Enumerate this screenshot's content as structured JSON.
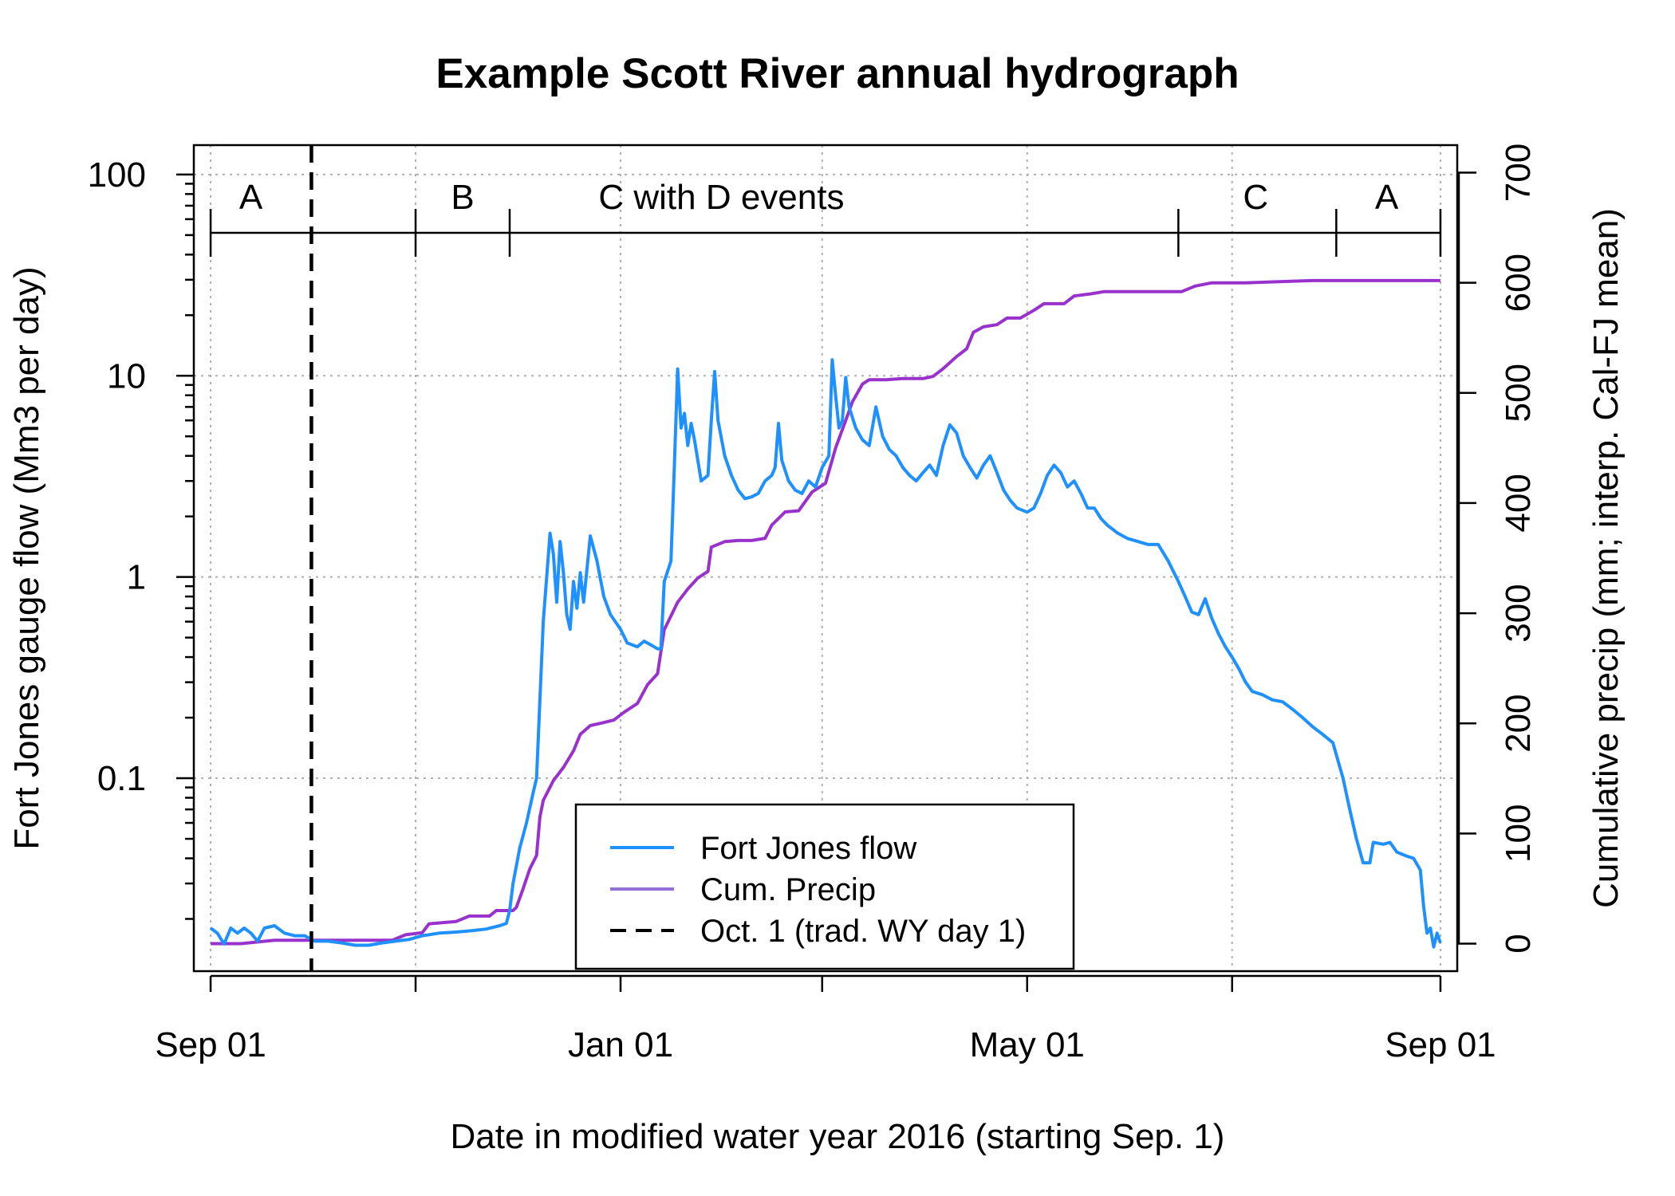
{
  "chart_data": {
    "type": "line",
    "title": "Example Scott River annual hydrograph",
    "xlabel": "Date in modified water year 2016 (starting Sep. 1)",
    "ylabel": "Fort Jones gauge flow (Mm3 per day)",
    "y2label": "Cumulative precip (mm; interp. Cal-FJ mean)",
    "x_ticks": [
      {
        "date": "2015-09-01",
        "label": "Sep 01"
      },
      {
        "date": "2016-01-01",
        "label": "Jan 01"
      },
      {
        "date": "2016-05-01",
        "label": "May 01"
      },
      {
        "date": "2016-09-01",
        "label": "Sep 01"
      }
    ],
    "x_minor_ticks": [
      "2015-11-01",
      "2016-03-01",
      "2016-07-01"
    ],
    "xlim": [
      "2015-08-27",
      "2016-09-06"
    ],
    "y_scale": "log",
    "ylim": [
      0.011,
      140
    ],
    "y_ticks": [
      {
        "value": 0.1,
        "label": "0.1"
      },
      {
        "value": 1,
        "label": "1"
      },
      {
        "value": 10,
        "label": "10"
      },
      {
        "value": 100,
        "label": "100"
      }
    ],
    "y2lim": [
      -25,
      725
    ],
    "y2_ticks": [
      0,
      100,
      200,
      300,
      400,
      500,
      600,
      700
    ],
    "grid": true,
    "legend_position": "bottom-center",
    "colors": {
      "flow": "#1e90ff",
      "precip": "#9932cc",
      "oct1": "#000000"
    },
    "segments": {
      "boundaries": [
        "2015-09-01",
        "2015-11-01",
        "2015-11-29",
        "2016-06-15",
        "2016-08-01",
        "2016-09-01"
      ],
      "labels": [
        {
          "label": "A",
          "date": "2015-09-13"
        },
        {
          "label": "B",
          "date": "2015-11-15"
        },
        {
          "label": "C with D events",
          "date": "2016-01-31"
        },
        {
          "label": "C",
          "date": "2016-07-08"
        },
        {
          "label": "A",
          "date": "2016-08-16"
        }
      ]
    },
    "vline": {
      "date": "2015-10-01",
      "name": "Oct. 1 (trad. WY day 1)"
    },
    "series": [
      {
        "name": "Fort Jones flow",
        "axis": "left",
        "points": [
          [
            "2015-09-01",
            0.018
          ],
          [
            "2015-09-03",
            0.017
          ],
          [
            "2015-09-05",
            0.015
          ],
          [
            "2015-09-07",
            0.018
          ],
          [
            "2015-09-09",
            0.017
          ],
          [
            "2015-09-11",
            0.018
          ],
          [
            "2015-09-13",
            0.017
          ],
          [
            "2015-09-15",
            0.0155
          ],
          [
            "2015-09-17",
            0.018
          ],
          [
            "2015-09-20",
            0.0185
          ],
          [
            "2015-09-23",
            0.017
          ],
          [
            "2015-09-26",
            0.0165
          ],
          [
            "2015-09-29",
            0.0165
          ],
          [
            "2015-10-02",
            0.0155
          ],
          [
            "2015-10-06",
            0.0155
          ],
          [
            "2015-10-10",
            0.0152
          ],
          [
            "2015-10-14",
            0.0148
          ],
          [
            "2015-10-18",
            0.0148
          ],
          [
            "2015-10-22",
            0.0152
          ],
          [
            "2015-10-26",
            0.0155
          ],
          [
            "2015-10-30",
            0.0158
          ],
          [
            "2015-11-03",
            0.0165
          ],
          [
            "2015-11-08",
            0.017
          ],
          [
            "2015-11-13",
            0.0172
          ],
          [
            "2015-11-18",
            0.0175
          ],
          [
            "2015-11-22",
            0.0178
          ],
          [
            "2015-11-26",
            0.0185
          ],
          [
            "2015-11-28",
            0.019
          ],
          [
            "2015-11-29",
            0.022
          ],
          [
            "2015-11-30",
            0.03
          ],
          [
            "2015-12-02",
            0.045
          ],
          [
            "2015-12-04",
            0.06
          ],
          [
            "2015-12-06",
            0.085
          ],
          [
            "2015-12-07",
            0.1
          ],
          [
            "2015-12-09",
            0.6
          ],
          [
            "2015-12-11",
            1.65
          ],
          [
            "2015-12-12",
            1.3
          ],
          [
            "2015-12-13",
            0.75
          ],
          [
            "2015-12-14",
            1.5
          ],
          [
            "2015-12-15",
            1.05
          ],
          [
            "2015-12-16",
            0.65
          ],
          [
            "2015-12-17",
            0.55
          ],
          [
            "2015-12-18",
            0.95
          ],
          [
            "2015-12-19",
            0.7
          ],
          [
            "2015-12-20",
            1.05
          ],
          [
            "2015-12-21",
            0.75
          ],
          [
            "2015-12-23",
            1.6
          ],
          [
            "2015-12-25",
            1.2
          ],
          [
            "2015-12-27",
            0.8
          ],
          [
            "2015-12-29",
            0.65
          ],
          [
            "2016-01-01",
            0.55
          ],
          [
            "2016-01-03",
            0.47
          ],
          [
            "2016-01-06",
            0.45
          ],
          [
            "2016-01-08",
            0.48
          ],
          [
            "2016-01-10",
            0.46
          ],
          [
            "2016-01-12",
            0.44
          ],
          [
            "2016-01-13",
            0.44
          ],
          [
            "2016-01-14",
            0.95
          ],
          [
            "2016-01-16",
            1.2
          ],
          [
            "2016-01-17",
            3.5
          ],
          [
            "2016-01-18",
            10.8
          ],
          [
            "2016-01-19",
            5.5
          ],
          [
            "2016-01-20",
            6.5
          ],
          [
            "2016-01-21",
            4.5
          ],
          [
            "2016-01-22",
            5.8
          ],
          [
            "2016-01-23",
            4.8
          ],
          [
            "2016-01-25",
            3.0
          ],
          [
            "2016-01-27",
            3.2
          ],
          [
            "2016-01-28",
            6.0
          ],
          [
            "2016-01-29",
            10.5
          ],
          [
            "2016-01-30",
            6.0
          ],
          [
            "2016-02-01",
            4.0
          ],
          [
            "2016-02-03",
            3.2
          ],
          [
            "2016-02-05",
            2.7
          ],
          [
            "2016-02-07",
            2.45
          ],
          [
            "2016-02-09",
            2.5
          ],
          [
            "2016-02-11",
            2.6
          ],
          [
            "2016-02-13",
            3.0
          ],
          [
            "2016-02-15",
            3.2
          ],
          [
            "2016-02-16",
            3.5
          ],
          [
            "2016-02-17",
            5.8
          ],
          [
            "2016-02-18",
            3.8
          ],
          [
            "2016-02-20",
            3.0
          ],
          [
            "2016-02-22",
            2.7
          ],
          [
            "2016-02-24",
            2.6
          ],
          [
            "2016-02-26",
            3.0
          ],
          [
            "2016-02-28",
            2.8
          ],
          [
            "2016-03-01",
            3.5
          ],
          [
            "2016-03-03",
            4.0
          ],
          [
            "2016-03-04",
            12.0
          ],
          [
            "2016-03-05",
            8.0
          ],
          [
            "2016-03-06",
            5.5
          ],
          [
            "2016-03-07",
            6.0
          ],
          [
            "2016-03-08",
            9.8
          ],
          [
            "2016-03-09",
            7.0
          ],
          [
            "2016-03-11",
            5.5
          ],
          [
            "2016-03-13",
            4.8
          ],
          [
            "2016-03-15",
            4.5
          ],
          [
            "2016-03-17",
            7.0
          ],
          [
            "2016-03-19",
            5.0
          ],
          [
            "2016-03-21",
            4.3
          ],
          [
            "2016-03-23",
            4.0
          ],
          [
            "2016-03-25",
            3.5
          ],
          [
            "2016-03-27",
            3.2
          ],
          [
            "2016-03-29",
            3.0
          ],
          [
            "2016-03-31",
            3.3
          ],
          [
            "2016-04-02",
            3.6
          ],
          [
            "2016-04-04",
            3.2
          ],
          [
            "2016-04-06",
            4.5
          ],
          [
            "2016-04-08",
            5.7
          ],
          [
            "2016-04-10",
            5.2
          ],
          [
            "2016-04-12",
            4.0
          ],
          [
            "2016-04-14",
            3.5
          ],
          [
            "2016-04-16",
            3.1
          ],
          [
            "2016-04-18",
            3.6
          ],
          [
            "2016-04-20",
            4.0
          ],
          [
            "2016-04-22",
            3.3
          ],
          [
            "2016-04-24",
            2.7
          ],
          [
            "2016-04-26",
            2.4
          ],
          [
            "2016-04-28",
            2.2
          ],
          [
            "2016-05-01",
            2.1
          ],
          [
            "2016-05-03",
            2.2
          ],
          [
            "2016-05-05",
            2.6
          ],
          [
            "2016-05-07",
            3.2
          ],
          [
            "2016-05-09",
            3.6
          ],
          [
            "2016-05-11",
            3.3
          ],
          [
            "2016-05-13",
            2.8
          ],
          [
            "2016-05-15",
            3.0
          ],
          [
            "2016-05-17",
            2.6
          ],
          [
            "2016-05-19",
            2.2
          ],
          [
            "2016-05-21",
            2.2
          ],
          [
            "2016-05-23",
            1.95
          ],
          [
            "2016-05-25",
            1.8
          ],
          [
            "2016-05-28",
            1.65
          ],
          [
            "2016-05-31",
            1.55
          ],
          [
            "2016-06-03",
            1.5
          ],
          [
            "2016-06-06",
            1.45
          ],
          [
            "2016-06-09",
            1.45
          ],
          [
            "2016-06-12",
            1.2
          ],
          [
            "2016-06-15",
            0.95
          ],
          [
            "2016-06-17",
            0.8
          ],
          [
            "2016-06-19",
            0.67
          ],
          [
            "2016-06-21",
            0.65
          ],
          [
            "2016-06-23",
            0.78
          ],
          [
            "2016-06-25",
            0.62
          ],
          [
            "2016-06-27",
            0.52
          ],
          [
            "2016-06-29",
            0.45
          ],
          [
            "2016-07-01",
            0.4
          ],
          [
            "2016-07-03",
            0.35
          ],
          [
            "2016-07-05",
            0.3
          ],
          [
            "2016-07-07",
            0.27
          ],
          [
            "2016-07-10",
            0.26
          ],
          [
            "2016-07-13",
            0.245
          ],
          [
            "2016-07-16",
            0.24
          ],
          [
            "2016-07-19",
            0.22
          ],
          [
            "2016-07-22",
            0.2
          ],
          [
            "2016-07-25",
            0.18
          ],
          [
            "2016-07-28",
            0.165
          ],
          [
            "2016-07-31",
            0.15
          ],
          [
            "2016-08-03",
            0.1
          ],
          [
            "2016-08-05",
            0.07
          ],
          [
            "2016-08-07",
            0.05
          ],
          [
            "2016-08-09",
            0.038
          ],
          [
            "2016-08-11",
            0.038
          ],
          [
            "2016-08-12",
            0.048
          ],
          [
            "2016-08-15",
            0.047
          ],
          [
            "2016-08-17",
            0.048
          ],
          [
            "2016-08-19",
            0.043
          ],
          [
            "2016-08-22",
            0.041
          ],
          [
            "2016-08-24",
            0.04
          ],
          [
            "2016-08-26",
            0.035
          ],
          [
            "2016-08-27",
            0.023
          ],
          [
            "2016-08-28",
            0.017
          ],
          [
            "2016-08-29",
            0.018
          ],
          [
            "2016-08-30",
            0.0145
          ],
          [
            "2016-08-31",
            0.017
          ],
          [
            "2016-09-01",
            0.0152
          ]
        ]
      },
      {
        "name": "Cum. Precip",
        "axis": "right",
        "points": [
          [
            "2015-09-01",
            0
          ],
          [
            "2015-09-10",
            0
          ],
          [
            "2015-09-20",
            3
          ],
          [
            "2015-10-10",
            3
          ],
          [
            "2015-10-25",
            3
          ],
          [
            "2015-10-29",
            8
          ],
          [
            "2015-11-03",
            10
          ],
          [
            "2015-11-05",
            18
          ],
          [
            "2015-11-13",
            20
          ],
          [
            "2015-11-17",
            25
          ],
          [
            "2015-11-23",
            25
          ],
          [
            "2015-11-25",
            30
          ],
          [
            "2015-11-30",
            30
          ],
          [
            "2015-12-01",
            33
          ],
          [
            "2015-12-03",
            50
          ],
          [
            "2015-12-05",
            68
          ],
          [
            "2015-12-07",
            80
          ],
          [
            "2015-12-08",
            115
          ],
          [
            "2015-12-09",
            130
          ],
          [
            "2015-12-12",
            148
          ],
          [
            "2015-12-15",
            160
          ],
          [
            "2015-12-18",
            175
          ],
          [
            "2015-12-20",
            190
          ],
          [
            "2015-12-23",
            198
          ],
          [
            "2015-12-26",
            200
          ],
          [
            "2015-12-30",
            203
          ],
          [
            "2016-01-02",
            210
          ],
          [
            "2016-01-06",
            218
          ],
          [
            "2016-01-09",
            235
          ],
          [
            "2016-01-12",
            245
          ],
          [
            "2016-01-14",
            285
          ],
          [
            "2016-01-18",
            310
          ],
          [
            "2016-01-21",
            322
          ],
          [
            "2016-01-24",
            332
          ],
          [
            "2016-01-27",
            338
          ],
          [
            "2016-01-28",
            360
          ],
          [
            "2016-02-01",
            365
          ],
          [
            "2016-02-05",
            366
          ],
          [
            "2016-02-09",
            366
          ],
          [
            "2016-02-13",
            368
          ],
          [
            "2016-02-15",
            380
          ],
          [
            "2016-02-19",
            392
          ],
          [
            "2016-02-23",
            393
          ],
          [
            "2016-02-27",
            410
          ],
          [
            "2016-03-02",
            418
          ],
          [
            "2016-03-05",
            450
          ],
          [
            "2016-03-08",
            475
          ],
          [
            "2016-03-10",
            492
          ],
          [
            "2016-03-13",
            508
          ],
          [
            "2016-03-15",
            512
          ],
          [
            "2016-03-20",
            512
          ],
          [
            "2016-03-25",
            513
          ],
          [
            "2016-03-31",
            513
          ],
          [
            "2016-04-03",
            515
          ],
          [
            "2016-04-06",
            522
          ],
          [
            "2016-04-10",
            533
          ],
          [
            "2016-04-13",
            540
          ],
          [
            "2016-04-15",
            555
          ],
          [
            "2016-04-18",
            560
          ],
          [
            "2016-04-22",
            562
          ],
          [
            "2016-04-25",
            568
          ],
          [
            "2016-04-29",
            568
          ],
          [
            "2016-05-03",
            575
          ],
          [
            "2016-05-06",
            581
          ],
          [
            "2016-05-12",
            581
          ],
          [
            "2016-05-15",
            588
          ],
          [
            "2016-05-20",
            590
          ],
          [
            "2016-05-24",
            592
          ],
          [
            "2016-05-28",
            592
          ],
          [
            "2016-06-03",
            592
          ],
          [
            "2016-06-10",
            592
          ],
          [
            "2016-06-16",
            592
          ],
          [
            "2016-06-20",
            597
          ],
          [
            "2016-06-25",
            600
          ],
          [
            "2016-07-05",
            600
          ],
          [
            "2016-07-15",
            601
          ],
          [
            "2016-07-25",
            602
          ],
          [
            "2016-08-05",
            602
          ],
          [
            "2016-08-20",
            602
          ],
          [
            "2016-09-01",
            602
          ]
        ]
      }
    ]
  }
}
